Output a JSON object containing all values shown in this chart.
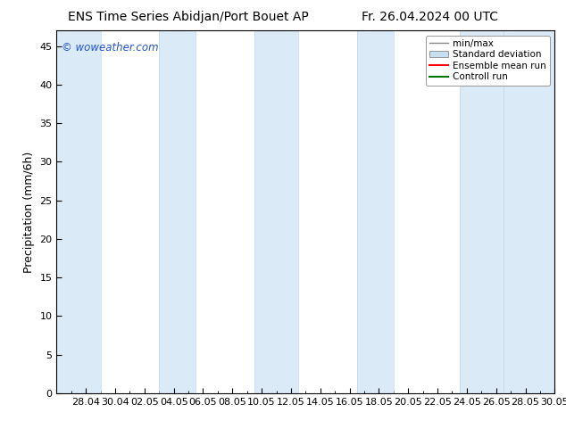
{
  "title_left": "ENS Time Series Abidjan/Port Bouet AP",
  "title_right": "Fr. 26.04.2024 00 UTC",
  "ylabel": "Precipitation (mm/6h)",
  "watermark": "© woweather.com",
  "ylim": [
    0,
    47
  ],
  "yticks": [
    0,
    5,
    10,
    15,
    20,
    25,
    30,
    35,
    40,
    45
  ],
  "x_labels": [
    "28.04",
    "30.04",
    "02.05",
    "04.05",
    "06.05",
    "08.05",
    "10.05",
    "12.05",
    "14.05",
    "16.05",
    "18.05",
    "20.05",
    "22.05",
    "24.05",
    "26.05",
    "28.05",
    "30.05"
  ],
  "band_color": "#daeaf7",
  "band_edge_color": "#c0d8ee",
  "background_color": "#ffffff",
  "legend_items": [
    {
      "label": "min/max",
      "color": "#aaaaaa",
      "style": "errorbar"
    },
    {
      "label": "Standard deviation",
      "color": "#c8dff0",
      "style": "box"
    },
    {
      "label": "Ensemble mean run",
      "color": "#ff0000",
      "style": "line"
    },
    {
      "label": "Controll run",
      "color": "#008000",
      "style": "line"
    }
  ],
  "title_fontsize": 10,
  "label_fontsize": 9,
  "tick_fontsize": 8
}
